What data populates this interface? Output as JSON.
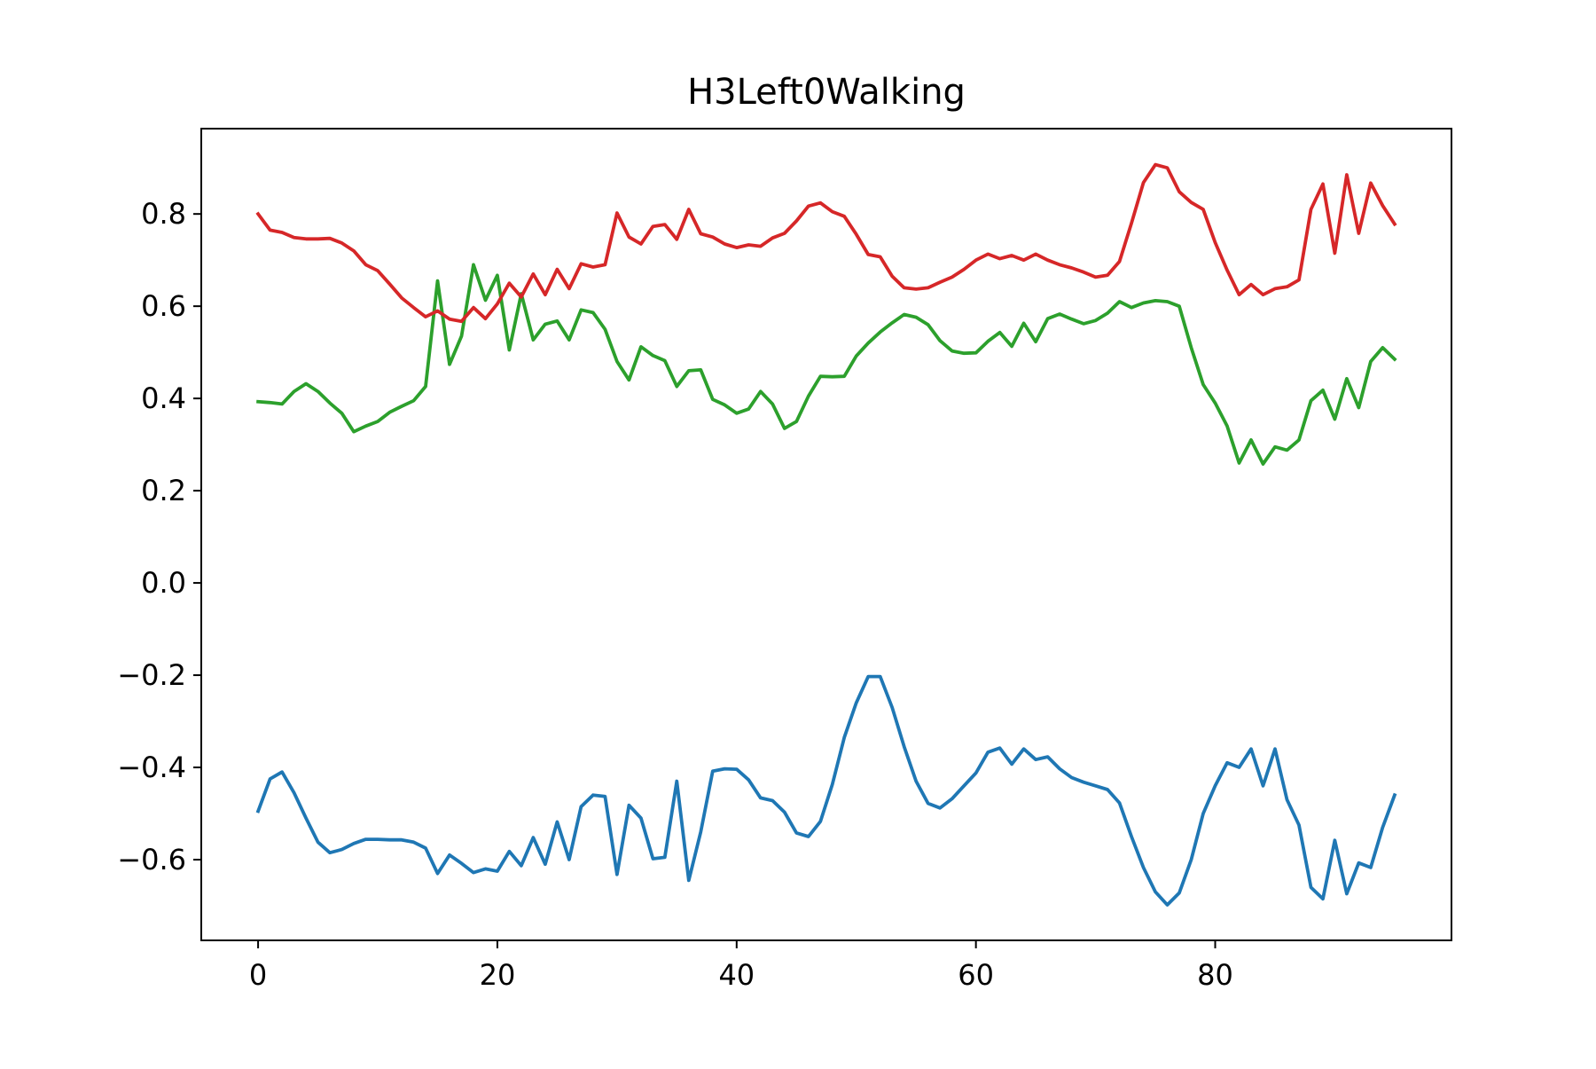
{
  "chart_data": {
    "type": "line",
    "title": "H3Left0Walking",
    "xlabel": "",
    "ylabel": "",
    "xlim": [
      -4.75,
      99.75
    ],
    "ylim": [
      -0.775,
      0.985
    ],
    "grid": false,
    "x_ticks": [
      {
        "value": 0,
        "label": "0"
      },
      {
        "value": 20,
        "label": "20"
      },
      {
        "value": 40,
        "label": "40"
      },
      {
        "value": 60,
        "label": "60"
      },
      {
        "value": 80,
        "label": "80"
      }
    ],
    "y_ticks": [
      {
        "value": -0.6,
        "label": "−0.6"
      },
      {
        "value": -0.4,
        "label": "−0.4"
      },
      {
        "value": -0.2,
        "label": "−0.2"
      },
      {
        "value": 0.0,
        "label": "0.0"
      },
      {
        "value": 0.2,
        "label": "0.2"
      },
      {
        "value": 0.4,
        "label": "0.4"
      },
      {
        "value": 0.6,
        "label": "0.6"
      },
      {
        "value": 0.8,
        "label": "0.8"
      }
    ],
    "series": [
      {
        "color": "#1f77b4",
        "values": [
          -0.495,
          -0.425,
          -0.41,
          -0.455,
          -0.51,
          -0.562,
          -0.585,
          -0.578,
          -0.565,
          -0.556,
          -0.556,
          -0.557,
          -0.557,
          -0.562,
          -0.575,
          -0.63,
          -0.59,
          -0.608,
          -0.628,
          -0.62,
          -0.625,
          -0.582,
          -0.613,
          -0.552,
          -0.61,
          -0.518,
          -0.6,
          -0.485,
          -0.46,
          -0.463,
          -0.632,
          -0.482,
          -0.51,
          -0.598,
          -0.595,
          -0.43,
          -0.645,
          -0.54,
          -0.408,
          -0.403,
          -0.404,
          -0.427,
          -0.466,
          -0.472,
          -0.497,
          -0.542,
          -0.55,
          -0.517,
          -0.437,
          -0.335,
          -0.26,
          -0.203,
          -0.203,
          -0.27,
          -0.355,
          -0.43,
          -0.478,
          -0.488,
          -0.468,
          -0.44,
          -0.412,
          -0.367,
          -0.358,
          -0.393,
          -0.36,
          -0.383,
          -0.377,
          -0.403,
          -0.422,
          -0.432,
          -0.44,
          -0.448,
          -0.477,
          -0.55,
          -0.617,
          -0.67,
          -0.698,
          -0.672,
          -0.6,
          -0.5,
          -0.44,
          -0.39,
          -0.4,
          -0.36,
          -0.44,
          -0.36,
          -0.47,
          -0.525,
          -0.66,
          -0.685,
          -0.558,
          -0.674,
          -0.607,
          -0.617,
          -0.53,
          -0.46
        ]
      },
      {
        "color": "#2ca02c",
        "values": [
          0.393,
          0.391,
          0.388,
          0.415,
          0.432,
          0.415,
          0.39,
          0.368,
          0.328,
          0.34,
          0.35,
          0.37,
          0.383,
          0.395,
          0.426,
          0.655,
          0.474,
          0.535,
          0.69,
          0.613,
          0.667,
          0.505,
          0.627,
          0.527,
          0.561,
          0.568,
          0.527,
          0.592,
          0.586,
          0.55,
          0.48,
          0.44,
          0.512,
          0.493,
          0.482,
          0.426,
          0.46,
          0.462,
          0.398,
          0.386,
          0.368,
          0.377,
          0.415,
          0.388,
          0.335,
          0.35,
          0.405,
          0.448,
          0.447,
          0.448,
          0.492,
          0.52,
          0.544,
          0.564,
          0.582,
          0.576,
          0.56,
          0.525,
          0.503,
          0.498,
          0.499,
          0.524,
          0.543,
          0.513,
          0.563,
          0.523,
          0.573,
          0.583,
          0.572,
          0.562,
          0.569,
          0.585,
          0.61,
          0.597,
          0.607,
          0.612,
          0.61,
          0.6,
          0.51,
          0.43,
          0.39,
          0.34,
          0.26,
          0.31,
          0.258,
          0.295,
          0.288,
          0.31,
          0.395,
          0.418,
          0.355,
          0.443,
          0.38,
          0.48,
          0.51,
          0.485
        ]
      },
      {
        "color": "#d62728",
        "values": [
          0.8,
          0.765,
          0.76,
          0.749,
          0.746,
          0.746,
          0.747,
          0.737,
          0.72,
          0.69,
          0.677,
          0.648,
          0.618,
          0.597,
          0.577,
          0.59,
          0.572,
          0.567,
          0.597,
          0.573,
          0.605,
          0.65,
          0.62,
          0.67,
          0.625,
          0.68,
          0.638,
          0.692,
          0.685,
          0.69,
          0.802,
          0.75,
          0.735,
          0.773,
          0.777,
          0.745,
          0.81,
          0.757,
          0.75,
          0.735,
          0.727,
          0.733,
          0.73,
          0.748,
          0.758,
          0.785,
          0.817,
          0.824,
          0.805,
          0.795,
          0.756,
          0.712,
          0.707,
          0.665,
          0.64,
          0.637,
          0.64,
          0.652,
          0.663,
          0.68,
          0.7,
          0.713,
          0.703,
          0.71,
          0.7,
          0.713,
          0.7,
          0.69,
          0.683,
          0.674,
          0.663,
          0.667,
          0.697,
          0.78,
          0.868,
          0.907,
          0.9,
          0.848,
          0.825,
          0.81,
          0.738,
          0.678,
          0.625,
          0.647,
          0.625,
          0.638,
          0.642,
          0.657,
          0.81,
          0.865,
          0.715,
          0.885,
          0.758,
          0.867,
          0.818,
          0.778
        ]
      }
    ]
  }
}
